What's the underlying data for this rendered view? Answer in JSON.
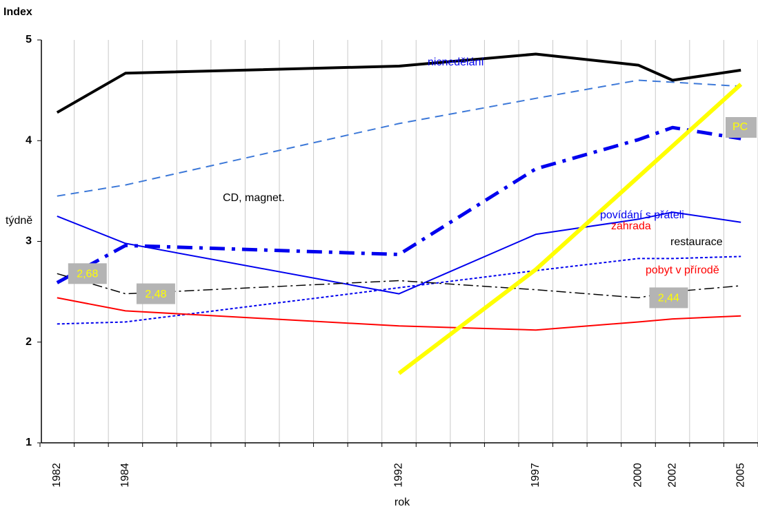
{
  "chart_data": {
    "type": "line",
    "y_title": "Index",
    "y_label": "týdně",
    "x_label": "rok",
    "categories": [
      "1982",
      null,
      "1984",
      null,
      null,
      null,
      null,
      null,
      null,
      null,
      "1992",
      null,
      null,
      null,
      "1997",
      null,
      null,
      "2000",
      "2002",
      null,
      "2005"
    ],
    "connect_gaps": true,
    "ylim": [
      1,
      5
    ],
    "yticks": [
      1,
      2,
      3,
      4,
      5
    ],
    "grid": true,
    "series": [
      {
        "color": "#000000",
        "width": 4,
        "dash": "none",
        "values": [
          4.28,
          null,
          4.67,
          null,
          null,
          null,
          null,
          null,
          null,
          null,
          4.74,
          null,
          null,
          null,
          4.86,
          null,
          null,
          4.75,
          4.6,
          null,
          4.7
        ]
      },
      {
        "color": "#3c78d8",
        "width": 2,
        "dash": "12,8",
        "values": [
          3.45,
          null,
          3.56,
          null,
          null,
          null,
          null,
          null,
          null,
          null,
          4.17,
          null,
          null,
          null,
          4.42,
          null,
          null,
          4.6,
          4.58,
          null,
          4.54
        ]
      },
      {
        "color": "#0000ee",
        "width": 5,
        "dash": "22,10,5,10",
        "values": [
          2.59,
          null,
          2.96,
          null,
          null,
          null,
          null,
          null,
          null,
          null,
          2.87,
          null,
          null,
          null,
          3.72,
          null,
          null,
          4.01,
          4.13,
          null,
          4.02
        ]
      },
      {
        "color": "#0000ee",
        "width": 2,
        "dash": "none",
        "values": [
          3.25,
          null,
          2.98,
          null,
          null,
          null,
          null,
          null,
          null,
          null,
          2.48,
          null,
          null,
          null,
          3.07,
          null,
          null,
          3.22,
          3.29,
          null,
          3.19
        ]
      },
      {
        "color": "#0000ee",
        "width": 2,
        "dash": "4,3",
        "values": [
          2.18,
          null,
          2.2,
          null,
          null,
          null,
          null,
          null,
          null,
          null,
          2.54,
          null,
          null,
          null,
          2.71,
          null,
          null,
          2.83,
          2.83,
          null,
          2.85
        ]
      },
      {
        "color": "#000000",
        "width": 1.5,
        "dash": "14,5,3,5",
        "values": [
          2.68,
          null,
          2.48,
          null,
          null,
          null,
          null,
          null,
          null,
          null,
          2.61,
          null,
          null,
          null,
          2.52,
          null,
          null,
          2.44,
          2.5,
          null,
          2.56
        ],
        "value_labels": [
          "2,68",
          null,
          "2,48",
          null,
          null,
          null,
          null,
          null,
          null,
          null,
          null,
          null,
          null,
          null,
          null,
          null,
          null,
          "2,44",
          null,
          null,
          null
        ]
      },
      {
        "color": "#ff0000",
        "width": 2,
        "dash": "none",
        "values": [
          2.44,
          null,
          2.31,
          null,
          null,
          null,
          null,
          null,
          null,
          null,
          2.16,
          null,
          null,
          null,
          2.12,
          null,
          null,
          2.2,
          2.23,
          null,
          2.26
        ]
      },
      {
        "color": "#ffff00",
        "width": 6,
        "dash": "none",
        "values": [
          null,
          null,
          null,
          null,
          null,
          null,
          null,
          null,
          null,
          null,
          1.69,
          null,
          null,
          null,
          2.72,
          null,
          null,
          null,
          null,
          null,
          4.56
        ]
      }
    ],
    "annotations": [
      {
        "text": "nicnedělání",
        "color": "#0000ee"
      },
      {
        "text": "CD, magnet.",
        "color": "#000000"
      },
      {
        "text": "povídání s přáteli",
        "color": "#0000ee"
      },
      {
        "text": "zahrada",
        "color": "#ff0000"
      },
      {
        "text": "restaurace",
        "color": "#000000"
      },
      {
        "text": "pobyt v přírodě",
        "color": "#ff0000"
      },
      {
        "text": "PC",
        "color": "#ffff00"
      }
    ]
  }
}
